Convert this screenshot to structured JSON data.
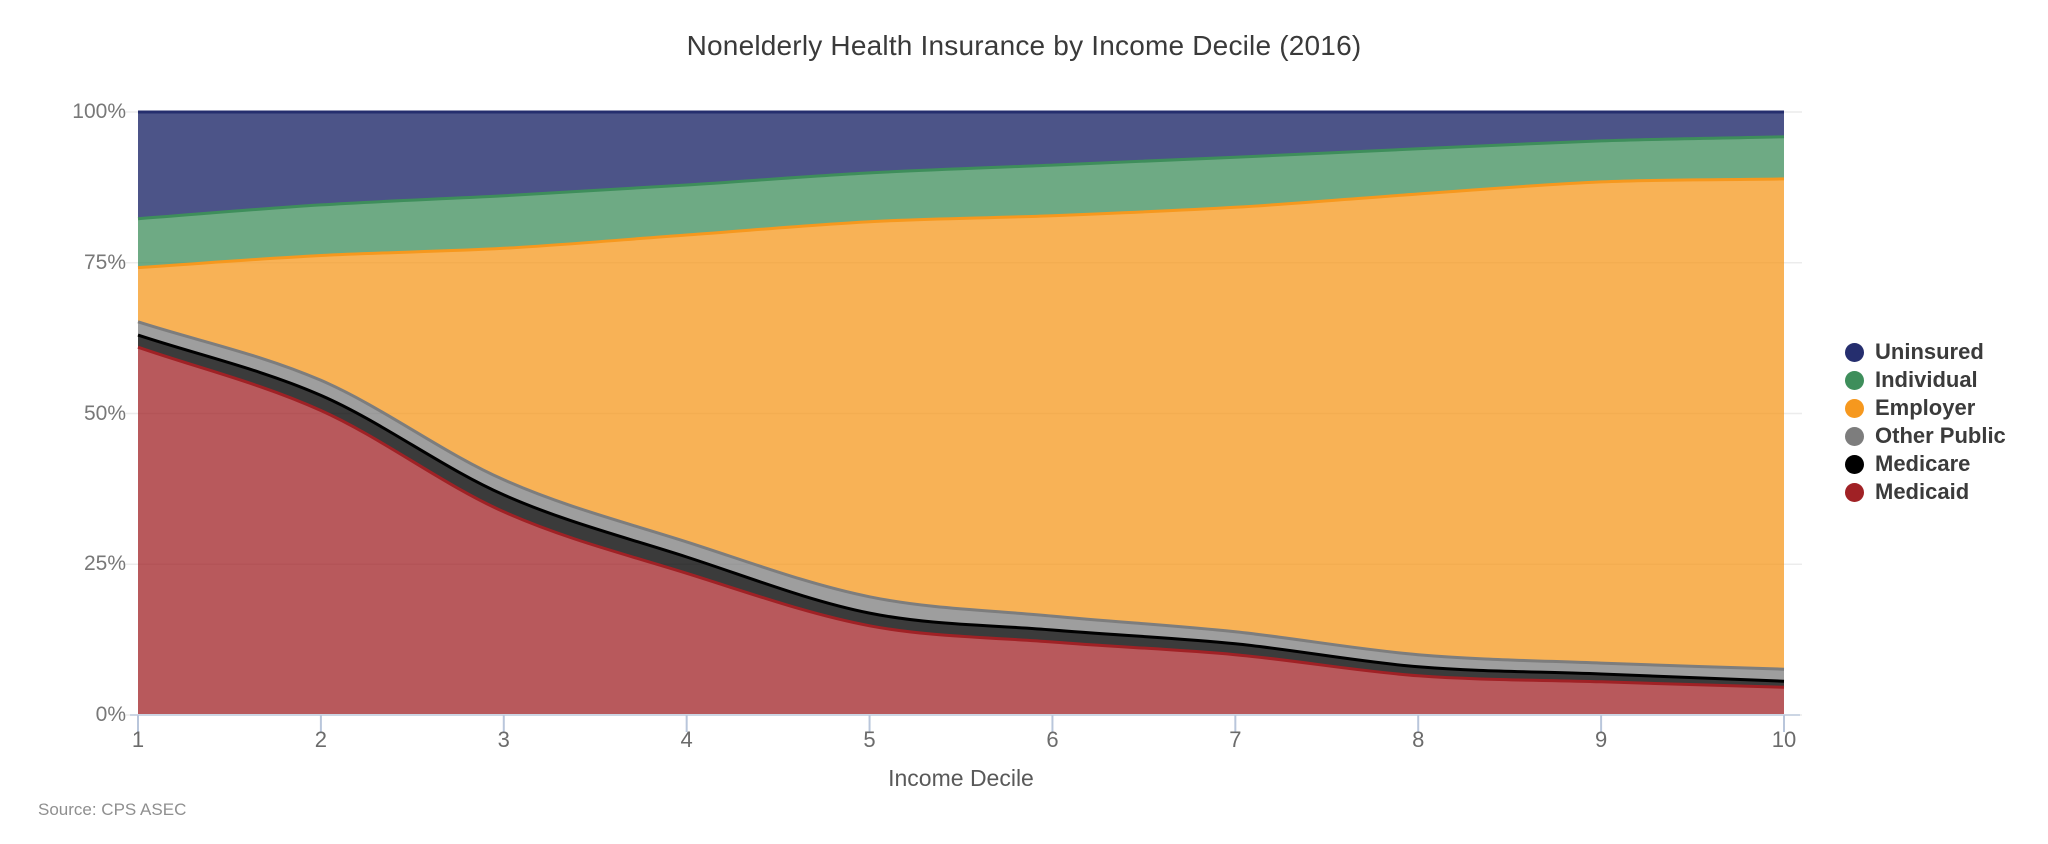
{
  "title": "Nonelderly Health Insurance by Income Decile (2016)",
  "source": "Source: CPS ASEC",
  "chart_data": {
    "type": "area",
    "stacked": true,
    "stack_unit": "percent",
    "title": "Nonelderly Health Insurance by Income Decile (2016)",
    "xlabel": "Income Decile",
    "ylabel": "",
    "ylim": [
      0,
      100
    ],
    "grid": true,
    "legend_position": "right",
    "x": [
      "1",
      "2",
      "3",
      "4",
      "5",
      "6",
      "7",
      "8",
      "9",
      "10"
    ],
    "y_ticks": [
      {
        "label": "0%",
        "value": 0
      },
      {
        "label": "25%",
        "value": 25
      },
      {
        "label": "50%",
        "value": 50
      },
      {
        "label": "75%",
        "value": 75
      },
      {
        "label": "100%",
        "value": 100
      }
    ],
    "series": [
      {
        "name": "Medicaid",
        "color": "#a02125",
        "values": [
          61.0,
          50.5,
          33.7,
          23.5,
          14.8,
          12.1,
          10.0,
          6.5,
          5.5,
          4.6
        ]
      },
      {
        "name": "Medicare",
        "color": "#000000",
        "values": [
          2.0,
          2.5,
          2.8,
          2.7,
          2.1,
          2.0,
          1.8,
          1.5,
          1.3,
          1.0
        ]
      },
      {
        "name": "Other Public",
        "color": "#7d7d7d",
        "values": [
          2.2,
          2.5,
          2.5,
          2.5,
          2.7,
          2.3,
          2.0,
          2.0,
          1.8,
          2.0
        ]
      },
      {
        "name": "Employer",
        "color": "#f6981e",
        "values": [
          9.0,
          20.7,
          38.4,
          50.9,
          62.2,
          66.4,
          70.4,
          76.4,
          79.8,
          81.3
        ]
      },
      {
        "name": "Individual",
        "color": "#3e8e5b",
        "values": [
          8.1,
          8.4,
          8.7,
          8.3,
          8.1,
          8.4,
          8.3,
          7.5,
          6.8,
          7.0
        ]
      },
      {
        "name": "Uninsured",
        "color": "#252e6e",
        "values": [
          17.7,
          15.4,
          13.9,
          12.1,
          10.1,
          8.8,
          7.5,
          6.1,
          4.8,
          4.1
        ]
      }
    ],
    "legend_order": [
      "Uninsured",
      "Individual",
      "Employer",
      "Other Public",
      "Medicare",
      "Medicaid"
    ]
  }
}
